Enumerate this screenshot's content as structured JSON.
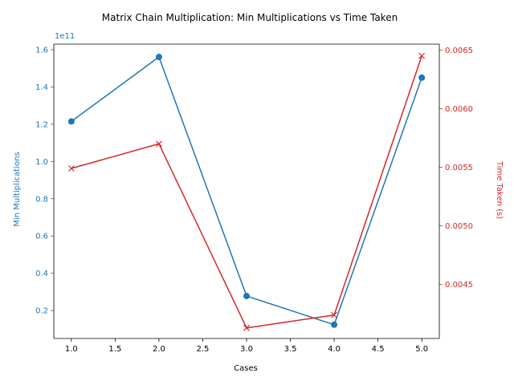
{
  "chart_data": {
    "type": "line",
    "title": "Matrix Chain Multiplication: Min Multiplications vs Time Taken",
    "xlabel": "Cases",
    "x": [
      1,
      2,
      3,
      4,
      5
    ],
    "xlim": [
      0.8,
      5.2
    ],
    "x_ticks": [
      "1.0",
      "1.5",
      "2.0",
      "2.5",
      "3.0",
      "3.5",
      "4.0",
      "4.5",
      "5.0"
    ],
    "grid": false,
    "series": [
      {
        "axis": "left",
        "ylabel": "Min Multiplications",
        "color": "#1f77b4",
        "marker": "circle",
        "values": [
          121500000000,
          156100000000,
          27800000000,
          12400000000,
          145000000000
        ],
        "ylim": [
          5000000000,
          163000000000
        ],
        "y_ticks": [
          "0.2",
          "0.4",
          "0.6",
          "0.8",
          "1.0",
          "1.2",
          "1.4",
          "1.6"
        ],
        "y_tick_values": [
          20000000000,
          40000000000,
          60000000000,
          80000000000,
          100000000000,
          120000000000,
          140000000000,
          160000000000
        ],
        "offset_label": "1e11"
      },
      {
        "axis": "right",
        "ylabel": "Time Taken (s)",
        "color": "#d62728",
        "marker": "x",
        "values": [
          0.00549,
          0.0057,
          0.00413,
          0.00424,
          0.00645
        ],
        "ylim": [
          0.00404,
          0.00655
        ],
        "y_ticks": [
          "0.0045",
          "0.0050",
          "0.0055",
          "0.0060",
          "0.0065"
        ],
        "y_tick_values": [
          0.0045,
          0.005,
          0.0055,
          0.006,
          0.0065
        ]
      }
    ]
  }
}
